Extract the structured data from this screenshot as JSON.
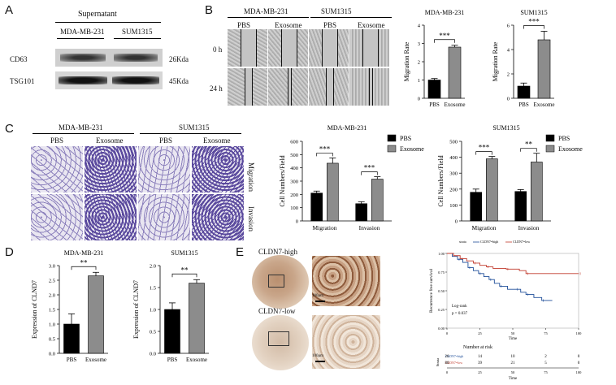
{
  "panels": {
    "A": "A",
    "B": "B",
    "C": "C",
    "D": "D",
    "E": "E"
  },
  "panelA": {
    "header": "Supernatant",
    "columns": [
      "MDA-MB-231",
      "SUM1315"
    ],
    "rows": [
      {
        "name": "CD63",
        "size": "26Kda"
      },
      {
        "name": "TSG101",
        "size": "45Kda"
      }
    ]
  },
  "panelB": {
    "groups": [
      {
        "name": "MDA-MB-231",
        "conds": [
          "PBS",
          "Exosome"
        ]
      },
      {
        "name": "SUM1315",
        "conds": [
          "PBS",
          "Exosome"
        ]
      }
    ],
    "times": [
      "0 h",
      "24 h"
    ]
  },
  "panelC": {
    "groups": [
      {
        "name": "MDA-MB-231",
        "conds": [
          "PBS",
          "Exosome"
        ]
      },
      {
        "name": "SUM1315",
        "conds": [
          "PBS",
          "Exosome"
        ]
      }
    ],
    "rows": [
      "Migration",
      "Invasion"
    ]
  },
  "panelE": {
    "high_label": "CLDN7-high",
    "low_label": "CLDN7-low",
    "scalebar": "100μm",
    "km": {
      "legend_strata": "strata",
      "legend_high": "CLDN7=high",
      "legend_low": "CLDN7=low",
      "ylabel": "Recurrence free survival",
      "xlabel": "Time",
      "logrank": "Log-rank",
      "p": "p = 0.037",
      "yticks": [
        "1.00",
        "0.75",
        "0.50",
        "0.25",
        "0.00"
      ],
      "xticks": [
        "0",
        "25",
        "50",
        "75",
        "100"
      ]
    },
    "risk": {
      "title": "Number at risk",
      "strata_label": "Strata",
      "rows": [
        {
          "name": "CLDN7=high",
          "values": [
            "26",
            "14",
            "10",
            "2",
            "0"
          ],
          "color": "#1f4e99"
        },
        {
          "name": "CLDN7=low",
          "values": [
            "80",
            "39",
            "21",
            "5",
            "0"
          ],
          "color": "#c0392b"
        }
      ],
      "xticks": [
        "0",
        "25",
        "50",
        "75",
        "100"
      ],
      "xlabel": "Time"
    }
  },
  "chart_data": [
    {
      "type": "bar",
      "title": "MDA-MB-231",
      "ylabel": "Migration Rate",
      "categories": [
        "PBS",
        "Exosome"
      ],
      "values": [
        1.0,
        2.8
      ],
      "errors": [
        0.08,
        0.1
      ],
      "colors": [
        "#000000",
        "#8c8c8c"
      ],
      "ylim": [
        0,
        4
      ],
      "yticks": [
        "0",
        "1",
        "2",
        "3",
        "4"
      ],
      "sig": [
        "***"
      ]
    },
    {
      "type": "bar",
      "title": "SUM1315",
      "ylabel": "Migration Rate",
      "categories": [
        "PBS",
        "Exosome"
      ],
      "values": [
        1.0,
        4.8
      ],
      "errors": [
        0.25,
        0.7
      ],
      "colors": [
        "#000000",
        "#8c8c8c"
      ],
      "ylim": [
        0,
        6
      ],
      "yticks": [
        "0",
        "2",
        "4",
        "6"
      ],
      "sig": [
        "***"
      ]
    },
    {
      "type": "bar",
      "title": "MDA-MB-231",
      "ylabel": "Cell Numbers/Field",
      "categories": [
        "Migration",
        "Invasion"
      ],
      "series": [
        {
          "name": "PBS",
          "values": [
            210,
            130
          ],
          "errors": [
            15,
            15
          ],
          "color": "#000000"
        },
        {
          "name": "Exosome",
          "values": [
            435,
            315
          ],
          "errors": [
            40,
            18
          ],
          "color": "#8c8c8c"
        }
      ],
      "ylim": [
        0,
        600
      ],
      "yticks": [
        "0",
        "100",
        "200",
        "300",
        "400",
        "500",
        "600"
      ],
      "sig": [
        "***",
        "***"
      ]
    },
    {
      "type": "bar",
      "title": "SUM1315",
      "ylabel": "Cell Numbers/Field",
      "categories": [
        "Migration",
        "Invasion"
      ],
      "series": [
        {
          "name": "PBS",
          "values": [
            180,
            185
          ],
          "errors": [
            20,
            12
          ],
          "color": "#000000"
        },
        {
          "name": "Exosome",
          "values": [
            390,
            370
          ],
          "errors": [
            15,
            55
          ],
          "color": "#8c8c8c"
        }
      ],
      "ylim": [
        0,
        500
      ],
      "yticks": [
        "0",
        "100",
        "200",
        "300",
        "400",
        "500"
      ],
      "sig": [
        "***",
        "**"
      ]
    },
    {
      "type": "bar",
      "title": "MDA-MB-231",
      "ylabel": "Expression of CLND7",
      "categories": [
        "PBS",
        "Exosome"
      ],
      "values": [
        1.0,
        2.65
      ],
      "errors": [
        0.35,
        0.12
      ],
      "colors": [
        "#000000",
        "#8c8c8c"
      ],
      "ylim": [
        0,
        3.0
      ],
      "yticks": [
        "0.0",
        "0.5",
        "1.0",
        "1.5",
        "2.0",
        "2.5",
        "3.0"
      ],
      "sig": [
        "**"
      ]
    },
    {
      "type": "bar",
      "title": "SUM1315",
      "ylabel": "Expression of CLND7",
      "categories": [
        "PBS",
        "Exosome"
      ],
      "values": [
        1.0,
        1.6
      ],
      "errors": [
        0.15,
        0.08
      ],
      "colors": [
        "#000000",
        "#8c8c8c"
      ],
      "ylim": [
        0,
        2.0
      ],
      "yticks": [
        "0.0",
        "0.5",
        "1.0",
        "1.5",
        "2.0"
      ],
      "sig": [
        "**"
      ]
    },
    {
      "type": "line",
      "title": "",
      "xlabel": "Time",
      "ylabel": "Recurrence free survival",
      "xlim": [
        0,
        100
      ],
      "ylim": [
        0,
        1
      ],
      "series": [
        {
          "name": "CLDN7=high",
          "color": "#1f4e99",
          "x": [
            0,
            4,
            8,
            12,
            16,
            20,
            24,
            28,
            32,
            36,
            40,
            46,
            52,
            56,
            60,
            66,
            72,
            80
          ],
          "y": [
            1.0,
            0.96,
            0.92,
            0.88,
            0.81,
            0.77,
            0.73,
            0.69,
            0.65,
            0.6,
            0.56,
            0.52,
            0.52,
            0.48,
            0.45,
            0.41,
            0.37,
            0.37
          ]
        },
        {
          "name": "CLDN7=low",
          "color": "#c0392b",
          "x": [
            0,
            5,
            10,
            15,
            20,
            25,
            30,
            35,
            45,
            55,
            60,
            70,
            100
          ],
          "y": [
            1.0,
            0.97,
            0.93,
            0.9,
            0.87,
            0.84,
            0.82,
            0.8,
            0.79,
            0.77,
            0.73,
            0.73,
            0.73
          ]
        }
      ]
    }
  ]
}
